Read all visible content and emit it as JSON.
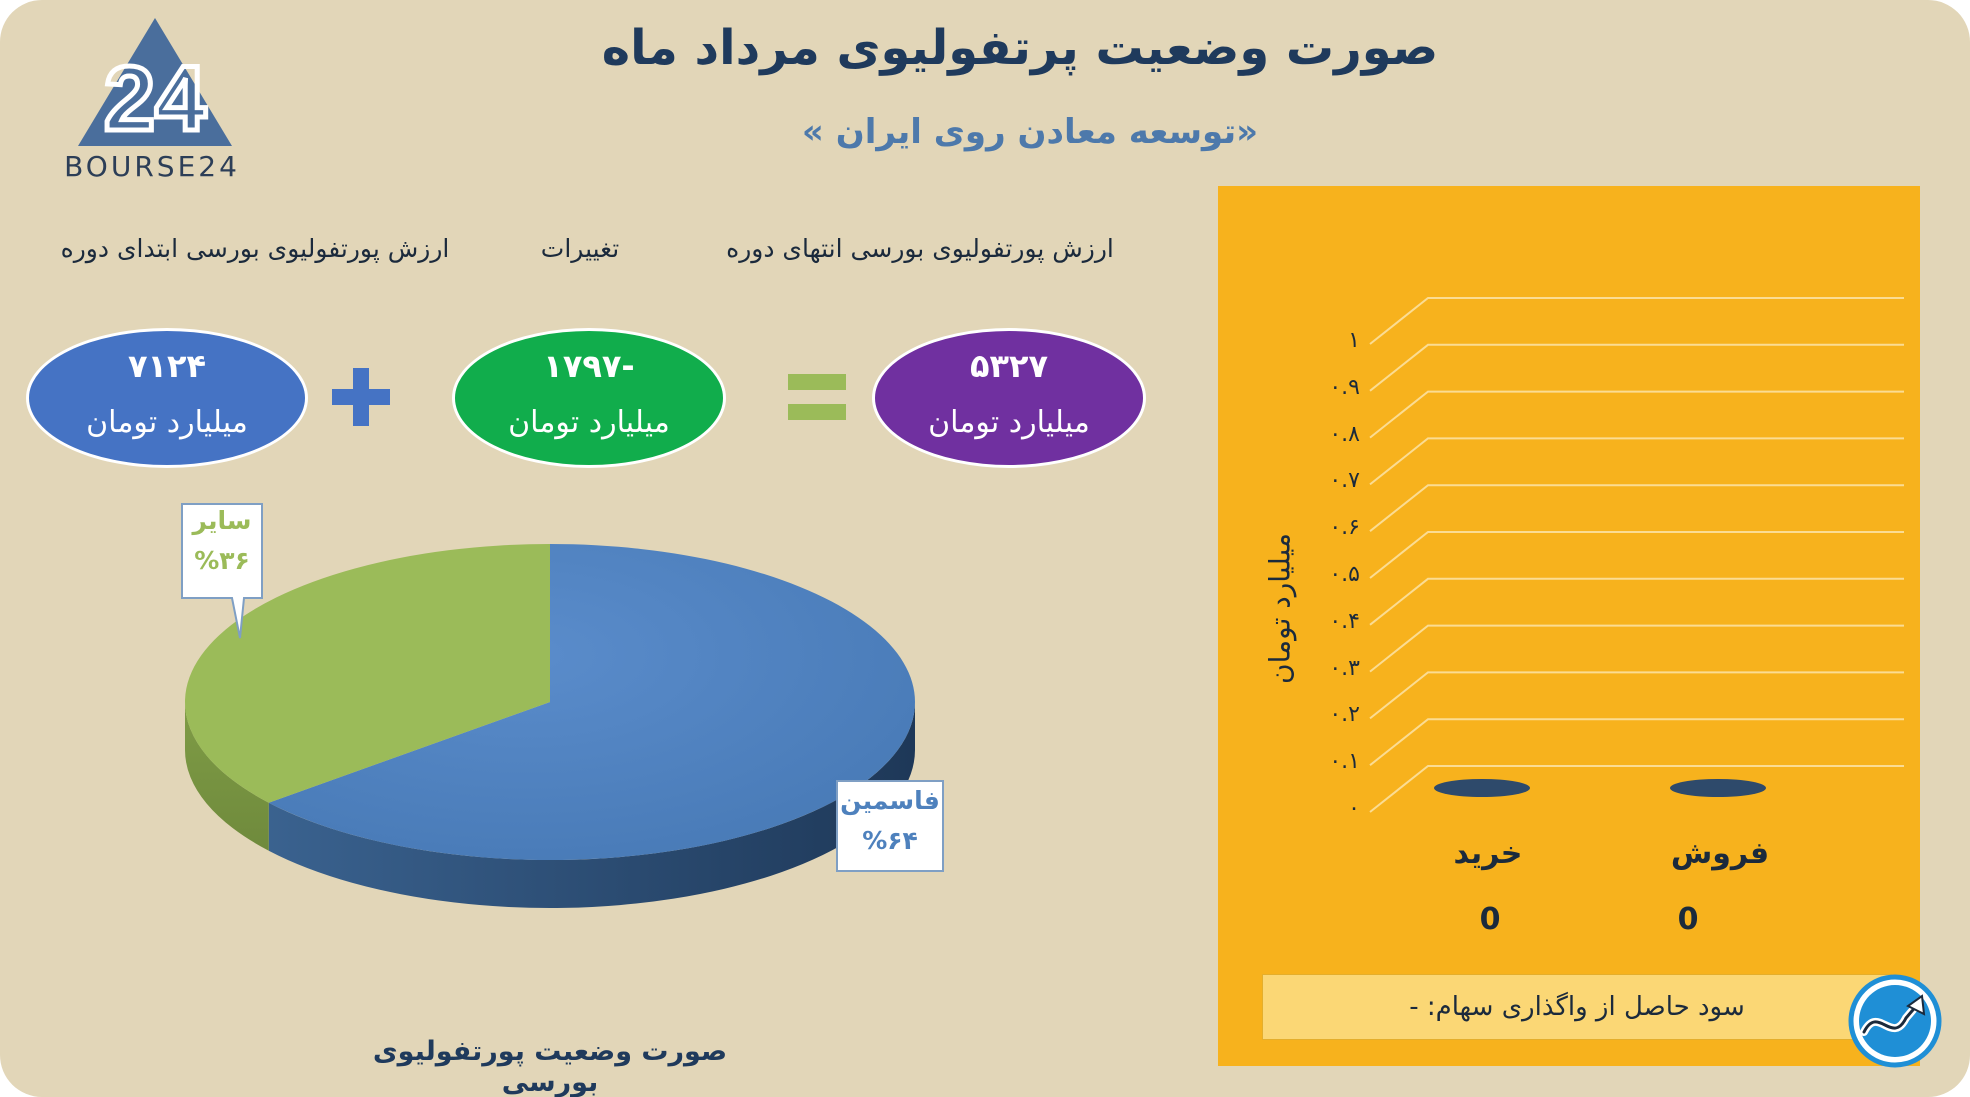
{
  "header": {
    "title": "صورت وضعیت پرتفولیوی مرداد ماه",
    "subtitle": "«توسعه معادن روی ایران  »"
  },
  "logo": {
    "text": "BOURSE24",
    "mark": "24",
    "color": "#4a6e9c"
  },
  "equation": {
    "start": {
      "label": "ارزش پورتفولیوی بورسی ابتدای دوره",
      "value": "۷۱۲۴",
      "unit": "میلیارد تومان",
      "color": "#4573c4"
    },
    "plus_icon": "plus-icon",
    "change": {
      "label": "تغییرات",
      "value": "-۱۷۹۷",
      "unit": "میلیارد تومان",
      "color": "#11ad4c"
    },
    "equals_icon": "equals-icon",
    "end": {
      "label": "ارزش پورتفولیوی بورسی انتهای دوره",
      "value": "۵۳۲۷",
      "unit": "میلیارد تومان",
      "color": "#7030a0"
    }
  },
  "chart_data": [
    {
      "type": "pie",
      "title": "صورت وضعیت پورتفولیوی بورسی",
      "slices": [
        {
          "name": "فاسمین",
          "label": "%۶۴",
          "value": 64,
          "color": "#4e81bd"
        },
        {
          "name": "سایر",
          "label": "%۳۶",
          "value": 36,
          "color": "#9bbb59"
        }
      ]
    },
    {
      "type": "bar",
      "ylabel": "میلیارد تومان",
      "ylim": [
        0,
        1
      ],
      "yticks": [
        "۰",
        "۰.۱",
        "۰.۲",
        "۰.۳",
        "۰.۴",
        "۰.۵",
        "۰.۶",
        "۰.۷",
        "۰.۸",
        "۰.۹",
        "۱"
      ],
      "categories": [
        "خرید",
        "فروش"
      ],
      "values": [
        0,
        0
      ],
      "value_labels": [
        "0",
        "0"
      ],
      "bar_color": "#2e4a6b",
      "grid": true
    }
  ],
  "profit": {
    "text": "سود حاصل از واگذاری سهام: -"
  },
  "badge": {
    "icon": "trend-arrow-icon",
    "color": "#1f8fd6"
  }
}
